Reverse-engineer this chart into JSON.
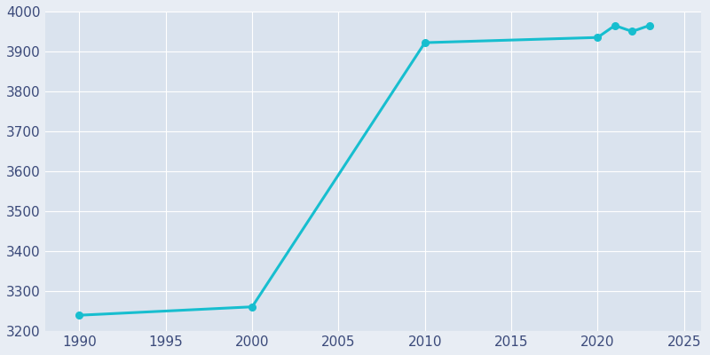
{
  "years": [
    1990,
    2000,
    2010,
    2020,
    2021,
    2022,
    2023
  ],
  "population": [
    3240,
    3261,
    3922,
    3935,
    3965,
    3950,
    3965
  ],
  "line_color": "#17BECF",
  "bg_color": "#E8EDF4",
  "plot_bg_color": "#DAE3EE",
  "text_color": "#3B4A7A",
  "grid_color": "#FFFFFF",
  "xlim": [
    1988,
    2026
  ],
  "ylim": [
    3200,
    4000
  ],
  "xticks": [
    1990,
    1995,
    2000,
    2005,
    2010,
    2015,
    2020,
    2025
  ],
  "yticks": [
    3200,
    3300,
    3400,
    3500,
    3600,
    3700,
    3800,
    3900,
    4000
  ],
  "linewidth": 2.2,
  "marker": "o",
  "markersize": 5.5
}
